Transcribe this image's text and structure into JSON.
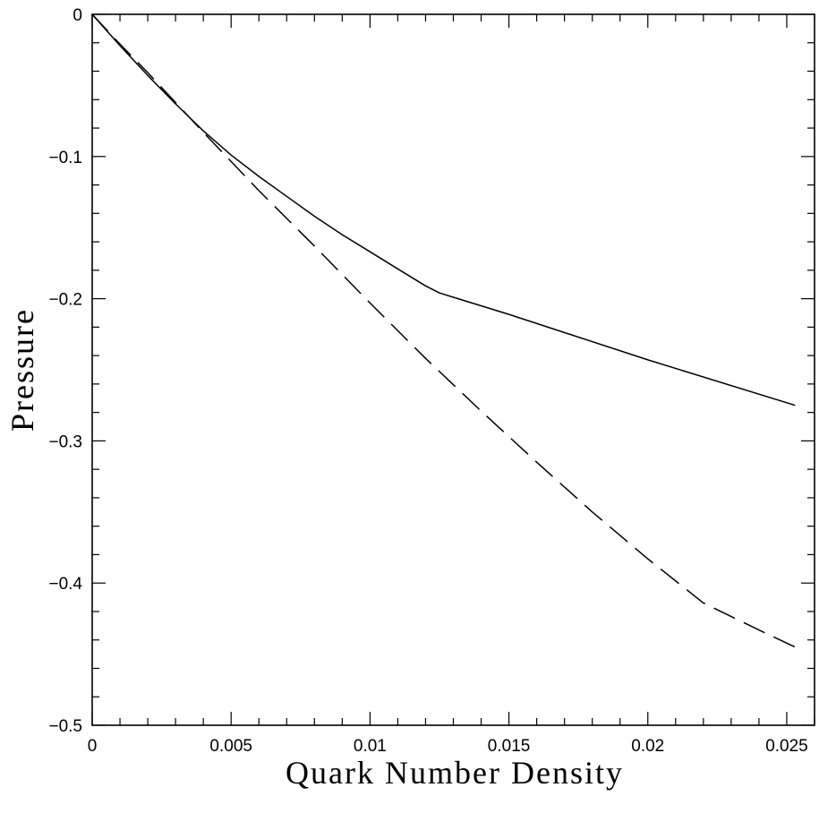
{
  "chart_data": {
    "type": "line",
    "title": "",
    "xlabel": "Quark Number Density",
    "ylabel": "Pressure",
    "xlim": [
      0,
      0.026
    ],
    "ylim": [
      -0.5,
      0
    ],
    "x_ticks": [
      0,
      0.005,
      0.01,
      0.015,
      0.02,
      0.025
    ],
    "x_tick_labels": [
      "0",
      "0.005",
      "0.01",
      "0.015",
      "0.02",
      "0.025"
    ],
    "x_minor_step": 0.001,
    "y_ticks": [
      0,
      -0.1,
      -0.2,
      -0.3,
      -0.4,
      -0.5
    ],
    "y_tick_labels": [
      "0",
      "−0.1",
      "−0.2",
      "−0.3",
      "−0.4",
      "−0.5"
    ],
    "y_minor_step": 0.02,
    "grid": false,
    "legend": "none",
    "series": [
      {
        "style": "solid",
        "color": "#000000",
        "x": [
          0,
          0.0005,
          0.001,
          0.002,
          0.003,
          0.004,
          0.005,
          0.006,
          0.007,
          0.008,
          0.009,
          0.01,
          0.011,
          0.012,
          0.0125,
          0.013,
          0.015,
          0.02,
          0.0253
        ],
        "y": [
          0,
          -0.011,
          -0.022,
          -0.043,
          -0.063,
          -0.082,
          -0.099,
          -0.114,
          -0.128,
          -0.142,
          -0.155,
          -0.167,
          -0.179,
          -0.191,
          -0.196,
          -0.199,
          -0.211,
          -0.243,
          -0.275
        ]
      },
      {
        "style": "dashed",
        "color": "#000000",
        "x": [
          0,
          0.001,
          0.002,
          0.004,
          0.006,
          0.008,
          0.01,
          0.012,
          0.014,
          0.016,
          0.018,
          0.02,
          0.022,
          0.024,
          0.0253
        ],
        "y": [
          0,
          -0.021,
          -0.041,
          -0.083,
          -0.124,
          -0.163,
          -0.203,
          -0.242,
          -0.279,
          -0.315,
          -0.35,
          -0.383,
          -0.414,
          -0.433,
          -0.445
        ]
      }
    ]
  }
}
